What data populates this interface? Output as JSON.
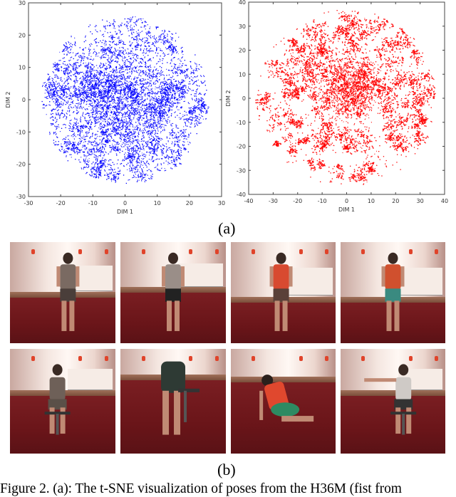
{
  "chart_data": [
    {
      "type": "scatter",
      "panel": "left",
      "title": "",
      "xlabel": "DIM 1",
      "ylabel": "DIM 2",
      "xlim": [
        -30,
        30
      ],
      "ylim": [
        -30,
        30
      ],
      "xticks": [
        "-30",
        "-20",
        "-10",
        "0",
        "10",
        "20",
        "30"
      ],
      "yticks": [
        "30",
        "20",
        "10",
        "0",
        "-10",
        "-20",
        "-30"
      ],
      "color": "#0000ff",
      "grid": false,
      "legend": null,
      "description": "Dense roughly circular t-SNE cloud of pose embeddings, radius ~26, densest near center (-5..5, -5..5)",
      "extent": {
        "x": [
          -26,
          26
        ],
        "y": [
          -26,
          26
        ]
      }
    },
    {
      "type": "scatter",
      "panel": "right",
      "title": "",
      "xlabel": "DIM 1",
      "ylabel": "DIM 2",
      "xlim": [
        -40,
        40
      ],
      "ylim": [
        -40,
        40
      ],
      "xticks": [
        "-40",
        "-30",
        "-20",
        "-10",
        "0",
        "10",
        "20",
        "30",
        "40"
      ],
      "yticks": [
        "40",
        "30",
        "20",
        "10",
        "0",
        "-10",
        "-20",
        "-30",
        "-40"
      ],
      "color": "#ff0000",
      "grid": false,
      "legend": null,
      "description": "Roughly circular t-SNE cloud with many small clusters, radius ~37, densest near center (0..5, 0..10)",
      "extent": {
        "x": [
          -37,
          37
        ],
        "y": [
          -37,
          40
        ]
      }
    }
  ],
  "labels": {
    "a": "(a)",
    "b": "(b)"
  },
  "photos": [
    {
      "row": 1,
      "col": 1,
      "pose": "walking, back view, patterned outfit"
    },
    {
      "row": 1,
      "col": 2,
      "pose": "standing, looking at phone, grey shirt"
    },
    {
      "row": 1,
      "col": 3,
      "pose": "standing, back view, red shirt, patterned shorts"
    },
    {
      "row": 1,
      "col": 4,
      "pose": "walking, red top, teal shorts"
    },
    {
      "row": 2,
      "col": 1,
      "pose": "sitting on chair, hand at face"
    },
    {
      "row": 2,
      "col": 2,
      "pose": "sitting, bent forward, head in hands"
    },
    {
      "row": 2,
      "col": 3,
      "pose": "crouching on floor, red top, green shorts"
    },
    {
      "row": 2,
      "col": 4,
      "pose": "sitting, arm extended, grey shirt"
    }
  ],
  "caption": {
    "text": "Figure 2. (a): The t-SNE visualization of poses from the H36M (fist from"
  }
}
